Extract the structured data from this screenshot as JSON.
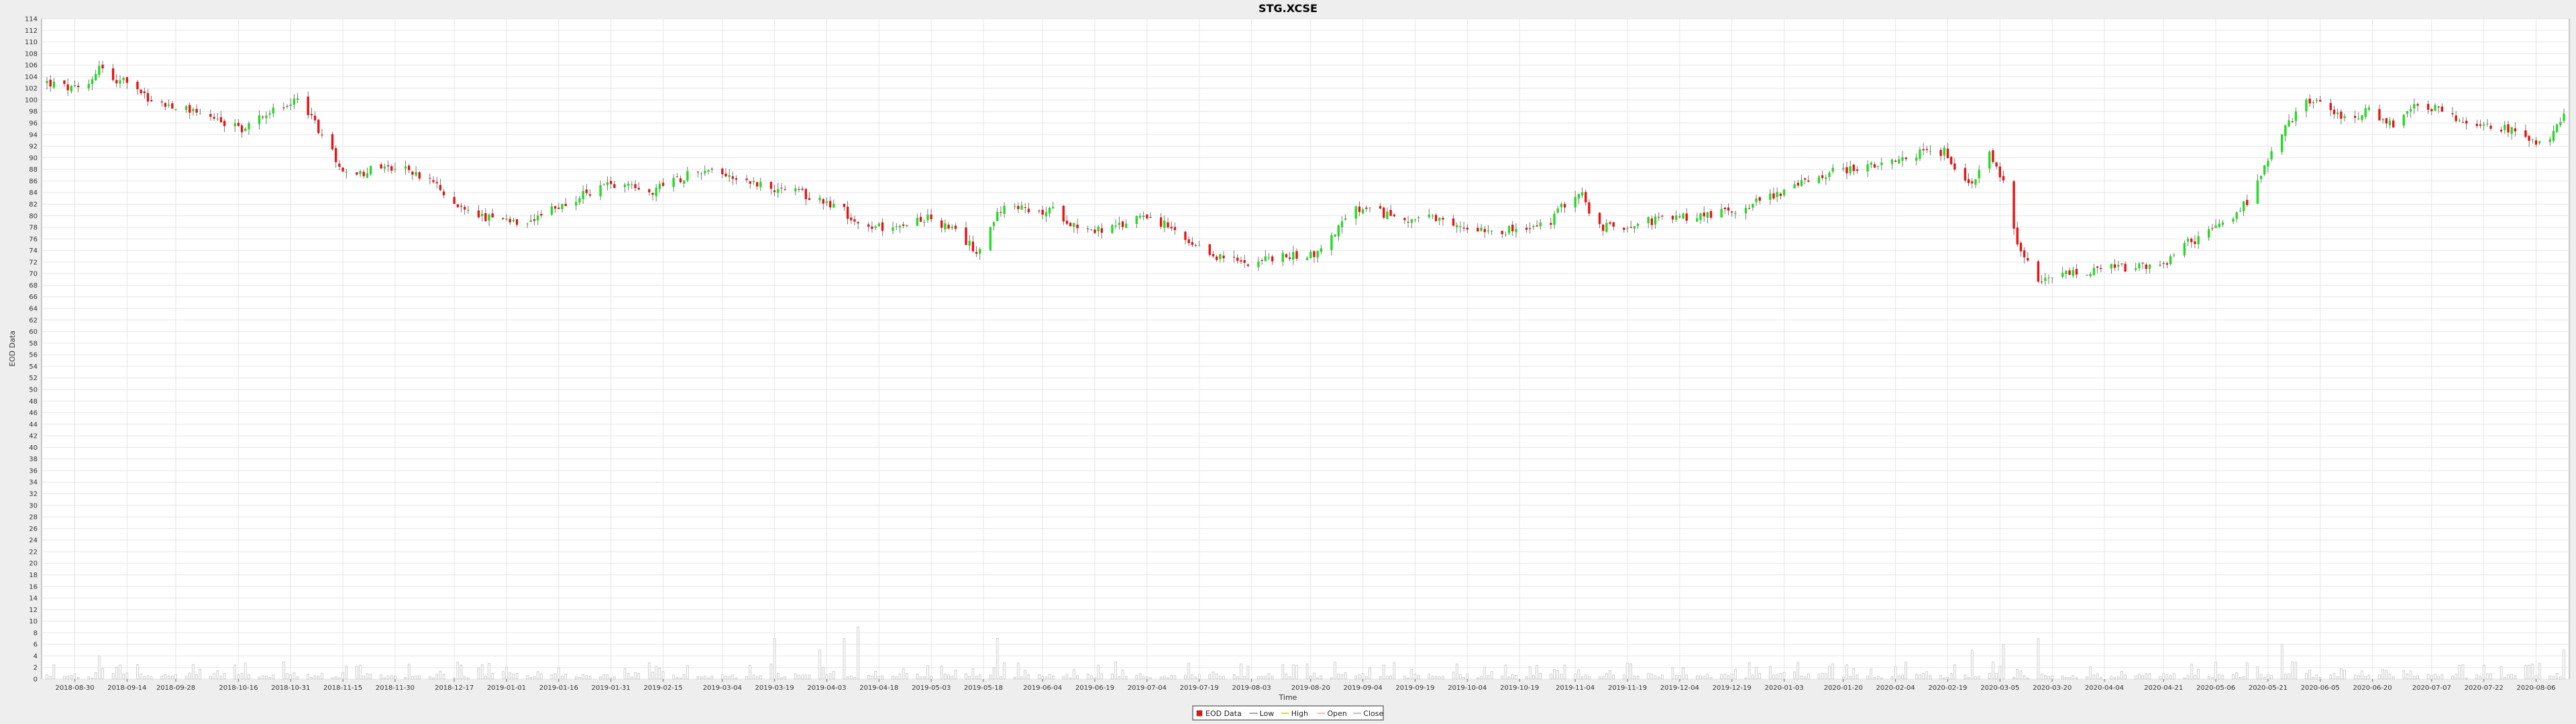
{
  "chart_data": {
    "type": "candlestick",
    "title": "STG.XCSE",
    "xlabel": "Time",
    "ylabel": "EOD Data",
    "ylim": [
      0,
      114
    ],
    "y_step": 2,
    "grid": true,
    "legend_position": "bottom-center",
    "x_start": "2018-08-22",
    "x_end": "2020-08-14",
    "x_tick_labels": [
      "2018-08-30",
      "2018-09-14",
      "2018-09-28",
      "2018-10-16",
      "2018-10-31",
      "2018-11-15",
      "2018-11-30",
      "2018-12-17",
      "2019-01-01",
      "2019-01-16",
      "2019-01-31",
      "2019-02-15",
      "2019-03-04",
      "2019-03-19",
      "2019-04-03",
      "2019-04-18",
      "2019-05-03",
      "2019-05-18",
      "2019-06-04",
      "2019-06-19",
      "2019-07-04",
      "2019-07-19",
      "2019-08-03",
      "2019-08-20",
      "2019-09-04",
      "2019-09-19",
      "2019-10-04",
      "2019-10-19",
      "2019-11-04",
      "2019-11-19",
      "2019-12-04",
      "2019-12-19",
      "2020-01-03",
      "2020-01-20",
      "2020-02-04",
      "2020-02-19",
      "2020-03-05",
      "2020-03-20",
      "2020-04-04",
      "2020-04-21",
      "2020-05-06",
      "2020-05-21",
      "2020-06-05",
      "2020-06-20",
      "2020-07-07",
      "2020-07-22",
      "2020-08-06"
    ],
    "legend": [
      "EOD Data",
      "Low",
      "High",
      "Open",
      "Close"
    ],
    "colors": {
      "up": "#22dd22",
      "down": "#ee1111",
      "wick": "#555555",
      "volume": "#bbbbbb",
      "grid": "#e6e6e6",
      "plot_bg": "#ffffff"
    },
    "anchors": [
      {
        "date": "2018-08-22",
        "close": 103
      },
      {
        "date": "2018-08-28",
        "close": 102
      },
      {
        "date": "2018-09-02",
        "close": 101.5
      },
      {
        "date": "2018-09-06",
        "close": 106
      },
      {
        "date": "2018-09-10",
        "close": 103.5
      },
      {
        "date": "2018-09-16",
        "close": 102.5
      },
      {
        "date": "2018-09-21",
        "close": 99.5
      },
      {
        "date": "2018-09-28",
        "close": 99
      },
      {
        "date": "2018-10-05",
        "close": 98
      },
      {
        "date": "2018-10-12",
        "close": 96
      },
      {
        "date": "2018-10-18",
        "close": 95
      },
      {
        "date": "2018-10-24",
        "close": 98
      },
      {
        "date": "2018-10-30",
        "close": 98.5
      },
      {
        "date": "2018-11-02",
        "close": 101
      },
      {
        "date": "2018-11-06",
        "close": 97
      },
      {
        "date": "2018-11-12",
        "close": 91
      },
      {
        "date": "2018-11-17",
        "close": 86
      },
      {
        "date": "2018-11-22",
        "close": 88
      },
      {
        "date": "2018-11-27",
        "close": 88.5
      },
      {
        "date": "2018-12-03",
        "close": 88
      },
      {
        "date": "2018-12-10",
        "close": 86
      },
      {
        "date": "2018-12-17",
        "close": 82
      },
      {
        "date": "2018-12-24",
        "close": 80
      },
      {
        "date": "2018-12-31",
        "close": 79
      },
      {
        "date": "2019-01-07",
        "close": 78
      },
      {
        "date": "2019-01-14",
        "close": 81
      },
      {
        "date": "2019-01-21",
        "close": 83
      },
      {
        "date": "2019-01-28",
        "close": 85
      },
      {
        "date": "2019-02-04",
        "close": 86
      },
      {
        "date": "2019-02-11",
        "close": 84
      },
      {
        "date": "2019-02-18",
        "close": 86
      },
      {
        "date": "2019-02-25",
        "close": 88
      },
      {
        "date": "2019-03-04",
        "close": 87.5
      },
      {
        "date": "2019-03-11",
        "close": 86
      },
      {
        "date": "2019-03-18",
        "close": 85
      },
      {
        "date": "2019-03-25",
        "close": 84
      },
      {
        "date": "2019-04-01",
        "close": 83
      },
      {
        "date": "2019-04-08",
        "close": 81
      },
      {
        "date": "2019-04-12",
        "close": 78
      },
      {
        "date": "2019-04-18",
        "close": 78
      },
      {
        "date": "2019-04-25",
        "close": 79
      },
      {
        "date": "2019-05-03",
        "close": 79.5
      },
      {
        "date": "2019-05-10",
        "close": 77
      },
      {
        "date": "2019-05-16",
        "close": 74
      },
      {
        "date": "2019-05-22",
        "close": 80
      },
      {
        "date": "2019-05-25",
        "close": 83
      },
      {
        "date": "2019-06-01",
        "close": 80
      },
      {
        "date": "2019-06-07",
        "close": 81
      },
      {
        "date": "2019-06-13",
        "close": 78.5
      },
      {
        "date": "2019-06-19",
        "close": 77.5
      },
      {
        "date": "2019-06-26",
        "close": 78
      },
      {
        "date": "2019-07-03",
        "close": 80.5
      },
      {
        "date": "2019-07-10",
        "close": 78
      },
      {
        "date": "2019-07-17",
        "close": 74.5
      },
      {
        "date": "2019-07-24",
        "close": 73
      },
      {
        "date": "2019-07-31",
        "close": 72
      },
      {
        "date": "2019-08-07",
        "close": 72.5
      },
      {
        "date": "2019-08-14",
        "close": 73
      },
      {
        "date": "2019-08-22",
        "close": 73.5
      },
      {
        "date": "2019-08-28",
        "close": 78
      },
      {
        "date": "2019-09-02",
        "close": 81
      },
      {
        "date": "2019-09-09",
        "close": 80.5
      },
      {
        "date": "2019-09-16",
        "close": 79.5
      },
      {
        "date": "2019-09-23",
        "close": 79.5
      },
      {
        "date": "2019-09-30",
        "close": 78
      },
      {
        "date": "2019-10-07",
        "close": 78
      },
      {
        "date": "2019-10-14",
        "close": 77.5
      },
      {
        "date": "2019-10-21",
        "close": 77.5
      },
      {
        "date": "2019-10-28",
        "close": 79
      },
      {
        "date": "2019-11-02",
        "close": 83
      },
      {
        "date": "2019-11-06",
        "close": 84
      },
      {
        "date": "2019-11-09",
        "close": 78
      },
      {
        "date": "2019-11-16",
        "close": 78
      },
      {
        "date": "2019-11-23",
        "close": 79
      },
      {
        "date": "2019-12-01",
        "close": 79.5
      },
      {
        "date": "2019-12-10",
        "close": 80
      },
      {
        "date": "2019-12-20",
        "close": 81
      },
      {
        "date": "2019-12-28",
        "close": 83
      },
      {
        "date": "2020-01-06",
        "close": 85
      },
      {
        "date": "2020-01-13",
        "close": 87
      },
      {
        "date": "2020-01-20",
        "close": 88
      },
      {
        "date": "2020-01-28",
        "close": 88.5
      },
      {
        "date": "2020-02-04",
        "close": 89
      },
      {
        "date": "2020-02-11",
        "close": 91
      },
      {
        "date": "2020-02-18",
        "close": 91
      },
      {
        "date": "2020-02-22",
        "close": 88
      },
      {
        "date": "2020-02-26",
        "close": 85
      },
      {
        "date": "2020-03-02",
        "close": 91
      },
      {
        "date": "2020-03-06",
        "close": 86
      },
      {
        "date": "2020-03-10",
        "close": 75
      },
      {
        "date": "2020-03-16",
        "close": 68
      },
      {
        "date": "2020-03-23",
        "close": 70
      },
      {
        "date": "2020-03-30",
        "close": 70
      },
      {
        "date": "2020-04-06",
        "close": 71
      },
      {
        "date": "2020-04-13",
        "close": 71
      },
      {
        "date": "2020-04-20",
        "close": 71
      },
      {
        "date": "2020-04-27",
        "close": 75
      },
      {
        "date": "2020-05-04",
        "close": 77
      },
      {
        "date": "2020-05-11",
        "close": 80
      },
      {
        "date": "2020-05-16",
        "close": 83
      },
      {
        "date": "2020-05-20",
        "close": 88
      },
      {
        "date": "2020-05-25",
        "close": 94
      },
      {
        "date": "2020-06-01",
        "close": 100
      },
      {
        "date": "2020-06-06",
        "close": 99
      },
      {
        "date": "2020-06-12",
        "close": 97
      },
      {
        "date": "2020-06-19",
        "close": 98
      },
      {
        "date": "2020-06-26",
        "close": 96
      },
      {
        "date": "2020-07-03",
        "close": 99
      },
      {
        "date": "2020-07-10",
        "close": 98.5
      },
      {
        "date": "2020-07-16",
        "close": 96
      },
      {
        "date": "2020-07-24",
        "close": 95
      },
      {
        "date": "2020-07-31",
        "close": 95
      },
      {
        "date": "2020-08-06",
        "close": 93
      },
      {
        "date": "2020-08-11",
        "close": 94
      },
      {
        "date": "2020-08-14",
        "close": 98
      }
    ],
    "volume_spikes": [
      {
        "date": "2018-09-06",
        "volume": 4
      },
      {
        "date": "2018-11-10",
        "volume": 4
      },
      {
        "date": "2018-11-18",
        "volume": 5
      },
      {
        "date": "2019-03-19",
        "volume": 7
      },
      {
        "date": "2019-04-01",
        "volume": 5
      },
      {
        "date": "2019-04-08",
        "volume": 7
      },
      {
        "date": "2019-04-12",
        "volume": 9
      },
      {
        "date": "2019-05-22",
        "volume": 7
      },
      {
        "date": "2020-02-26",
        "volume": 5
      },
      {
        "date": "2020-03-06",
        "volume": 6
      },
      {
        "date": "2020-03-16",
        "volume": 7
      },
      {
        "date": "2020-05-25",
        "volume": 6
      },
      {
        "date": "2020-08-14",
        "volume": 5
      }
    ]
  }
}
